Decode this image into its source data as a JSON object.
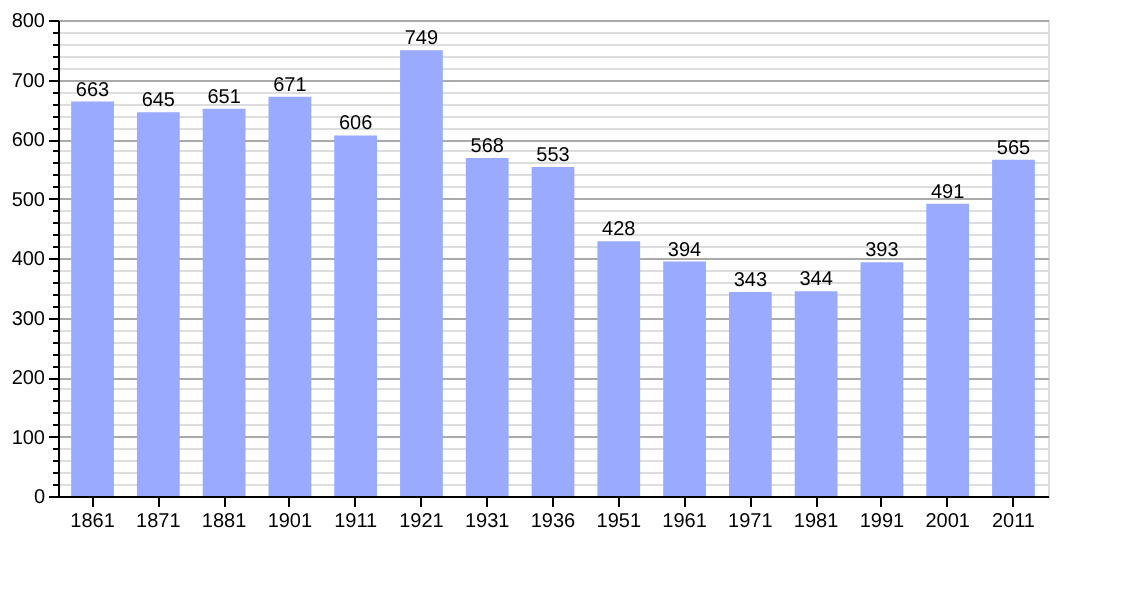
{
  "chart_data": {
    "type": "bar",
    "categories": [
      "1861",
      "1871",
      "1881",
      "1901",
      "1911",
      "1921",
      "1931",
      "1936",
      "1951",
      "1961",
      "1971",
      "1981",
      "1991",
      "2001",
      "2011"
    ],
    "values": [
      663,
      645,
      651,
      671,
      606,
      749,
      568,
      553,
      428,
      394,
      343,
      344,
      393,
      491,
      565
    ],
    "color": "#99aaff",
    "ylim": [
      0,
      800
    ],
    "yticks": [
      0,
      {
        "value": 20,
        "label": null
      },
      {
        "value": 40,
        "label": null
      },
      {
        "value": 60,
        "label": null
      },
      {
        "value": 80,
        "label": null
      },
      100,
      {
        "value": 120,
        "label": null
      },
      {
        "value": 140,
        "label": null
      },
      {
        "value": 160,
        "label": null
      },
      {
        "value": 180,
        "label": null
      },
      200,
      {
        "value": 220,
        "label": null
      },
      {
        "value": 240,
        "label": null
      },
      {
        "value": 260,
        "label": null
      },
      {
        "value": 280,
        "label": null
      },
      300,
      {
        "value": 320,
        "label": null
      },
      {
        "value": 340,
        "label": null
      },
      {
        "value": 360,
        "label": null
      },
      {
        "value": 380,
        "label": null
      },
      400,
      {
        "value": 420,
        "label": null
      },
      {
        "value": 440,
        "label": null
      },
      {
        "value": 460,
        "label": null
      },
      {
        "value": 480,
        "label": null
      },
      500,
      {
        "value": 520,
        "label": null
      },
      {
        "value": 540,
        "label": null
      },
      {
        "value": 560,
        "label": null
      },
      {
        "value": 580,
        "label": null
      },
      600,
      {
        "value": 620,
        "label": null
      },
      {
        "value": 640,
        "label": null
      },
      {
        "value": 660,
        "label": null
      },
      {
        "value": 680,
        "label": null
      },
      700,
      {
        "value": 720,
        "label": null
      },
      {
        "value": 740,
        "label": null
      },
      {
        "value": 760,
        "label": null
      },
      {
        "value": 780,
        "label": null
      },
      800
    ],
    "grid": true,
    "data_labels": true
  }
}
